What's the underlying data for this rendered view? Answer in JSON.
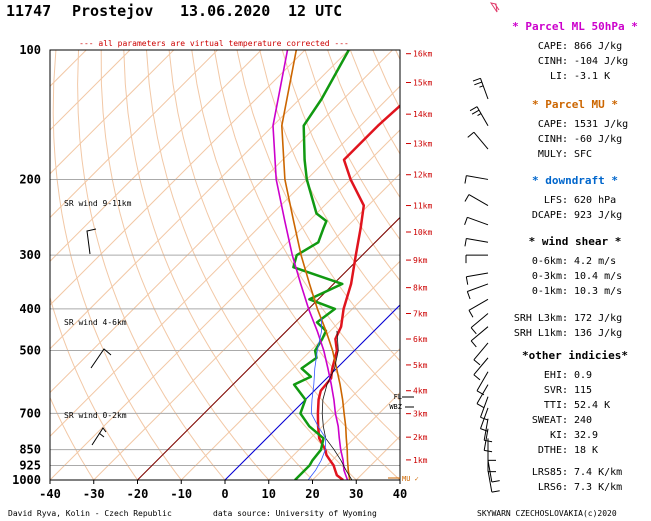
{
  "header": {
    "station_id": "11747",
    "station_name": "Prostejov",
    "date": "13.06.2020",
    "time": "12 UTC"
  },
  "note": "--- all parameters are virtual temperature corrected ---",
  "footer": {
    "left": "David Ryva, Kolin - Czech Republic",
    "center": "data source: University of Wyoming",
    "right": "SKYWARN CZECHOSLOVAKIA(c)2020"
  },
  "sr_labels": [
    "SR wind 9-11km",
    "SR wind 4-6km",
    "SR wind 0-2km"
  ],
  "level_labels": {
    "fl": "FL",
    "wbz": "WBZ",
    "mu": "MU"
  },
  "panels": {
    "parcel_ml": {
      "title": "* Parcel ML 50hPa *",
      "color": "#cc00cc",
      "rows": [
        {
          "label": "CAPE:",
          "value": "866 J/kg"
        },
        {
          "label": "CINH:",
          "value": "-104 J/kg"
        },
        {
          "label": "LI:",
          "value": "-3.1 K"
        }
      ]
    },
    "parcel_mu": {
      "title": "* Parcel MU *",
      "color": "#cc6600",
      "rows": [
        {
          "label": "CAPE:",
          "value": "1531 J/kg"
        },
        {
          "label": "CINH:",
          "value": "-60 J/kg"
        },
        {
          "label": "MULY:",
          "value": "SFC"
        }
      ]
    },
    "downdraft": {
      "title": "* downdraft *",
      "color": "#0066cc",
      "rows": [
        {
          "label": "LFS:",
          "value": "620 hPa"
        },
        {
          "label": "DCAPE:",
          "value": "923 J/kg"
        }
      ]
    },
    "wind_shear": {
      "title": "* wind shear *",
      "color": "#000000",
      "rows": [
        {
          "label": "0-6km:",
          "value": "4.2 m/s"
        },
        {
          "label": "0-3km:",
          "value": "10.4 m/s"
        },
        {
          "label": "0-1km:",
          "value": "10.3 m/s"
        }
      ]
    },
    "srh": {
      "rows": [
        {
          "label": "SRH L3km:",
          "value": "172 J/kg"
        },
        {
          "label": "SRH L1km:",
          "value": "136 J/kg"
        }
      ]
    },
    "other": {
      "title": "*other indicies*",
      "color": "#000000",
      "rows": [
        {
          "label": "EHI:",
          "value": "0.9"
        },
        {
          "label": "SVR:",
          "value": "115"
        },
        {
          "label": "TTI:",
          "value": "52.4 K"
        },
        {
          "label": "SWEAT:",
          "value": "240"
        },
        {
          "label": "KI:",
          "value": "32.9"
        },
        {
          "label": "DTHE:",
          "value": "18 K"
        },
        {
          "label": "LRS85:",
          "value": "7.4 K/km"
        },
        {
          "label": "LRS6:",
          "value": "7.3 K/km"
        }
      ]
    }
  },
  "chart_data": {
    "type": "line",
    "x_ticks": [
      -40,
      -30,
      -20,
      -10,
      0,
      10,
      20,
      30,
      40
    ],
    "xlim": [
      -40,
      40
    ],
    "pressure_ticks": [
      100,
      200,
      300,
      400,
      500,
      700,
      850,
      925,
      1000
    ],
    "pressure_range": [
      100,
      1000
    ],
    "height_labels": [
      "16km",
      "15km",
      "14km",
      "13km",
      "12km",
      "11km",
      "10km",
      "9km",
      "8km",
      "7km",
      "6km",
      "5km",
      "4km",
      "3km",
      "2km",
      "1km"
    ],
    "height_values_km": [
      16,
      15,
      14,
      13,
      12,
      11,
      10,
      9,
      8,
      7,
      6,
      5,
      4,
      3,
      2,
      1
    ],
    "height_pressures": [
      102,
      119,
      141,
      165,
      195,
      230,
      265,
      308,
      357,
      410,
      470,
      540,
      620,
      701,
      795,
      898
    ],
    "series": [
      {
        "key": "temperature",
        "color": "#e0141e",
        "points": [
          [
            1000,
            27
          ],
          [
            975,
            24.5
          ],
          [
            950,
            23
          ],
          [
            925,
            21.5
          ],
          [
            900,
            19.5
          ],
          [
            875,
            17.5
          ],
          [
            850,
            16
          ],
          [
            800,
            12
          ],
          [
            750,
            9
          ],
          [
            700,
            6
          ],
          [
            650,
            3
          ],
          [
            620,
            1.5
          ],
          [
            580,
            1
          ],
          [
            550,
            -1
          ],
          [
            500,
            -4
          ],
          [
            470,
            -7
          ],
          [
            440,
            -8.5
          ],
          [
            400,
            -12
          ],
          [
            350,
            -16
          ],
          [
            300,
            -21.5
          ],
          [
            260,
            -26.5
          ],
          [
            230,
            -31
          ],
          [
            200,
            -40
          ],
          [
            180,
            -46
          ],
          [
            150,
            -46
          ],
          [
            120,
            -45
          ],
          [
            100,
            -44
          ]
        ]
      },
      {
        "key": "dewpoint",
        "color": "#119911",
        "points": [
          [
            1000,
            16
          ],
          [
            950,
            16
          ],
          [
            925,
            16
          ],
          [
            900,
            15.5
          ],
          [
            850,
            15
          ],
          [
            800,
            13
          ],
          [
            750,
            7
          ],
          [
            700,
            2
          ],
          [
            650,
            0
          ],
          [
            600,
            -6
          ],
          [
            575,
            -4
          ],
          [
            550,
            -8
          ],
          [
            520,
            -7
          ],
          [
            500,
            -9
          ],
          [
            470,
            -10
          ],
          [
            450,
            -11
          ],
          [
            430,
            -15
          ],
          [
            400,
            -14
          ],
          [
            380,
            -22
          ],
          [
            350,
            -18
          ],
          [
            320,
            -33
          ],
          [
            300,
            -35
          ],
          [
            280,
            -33
          ],
          [
            260,
            -35
          ],
          [
            250,
            -36
          ],
          [
            240,
            -40
          ],
          [
            200,
            -50
          ],
          [
            180,
            -55
          ],
          [
            150,
            -63
          ],
          [
            130,
            -65
          ],
          [
            100,
            -70
          ]
        ]
      },
      {
        "key": "parcel_mu",
        "color": "#cc6600",
        "points": [
          [
            1000,
            28.5
          ],
          [
            950,
            26
          ],
          [
            900,
            23.5
          ],
          [
            850,
            21
          ],
          [
            800,
            18.2
          ],
          [
            750,
            15.3
          ],
          [
            700,
            12
          ],
          [
            650,
            8.5
          ],
          [
            600,
            4.5
          ],
          [
            550,
            0
          ],
          [
            500,
            -5
          ],
          [
            450,
            -11
          ],
          [
            400,
            -18
          ],
          [
            350,
            -25.5
          ],
          [
            300,
            -34
          ],
          [
            250,
            -43.5
          ],
          [
            200,
            -55
          ],
          [
            150,
            -68
          ],
          [
            100,
            -82
          ]
        ]
      },
      {
        "key": "parcel_ml",
        "color": "#cc00cc",
        "points": [
          [
            1000,
            28
          ],
          [
            950,
            25
          ],
          [
            900,
            22.5
          ],
          [
            850,
            19.5
          ],
          [
            800,
            16.6
          ],
          [
            750,
            13.6
          ],
          [
            700,
            10
          ],
          [
            650,
            6.5
          ],
          [
            600,
            2.5
          ],
          [
            550,
            -2
          ],
          [
            500,
            -7
          ],
          [
            450,
            -13
          ],
          [
            400,
            -20
          ],
          [
            350,
            -27.5
          ],
          [
            300,
            -36
          ],
          [
            250,
            -45.5
          ],
          [
            200,
            -57
          ],
          [
            150,
            -70
          ],
          [
            100,
            -84
          ]
        ]
      },
      {
        "key": "virtual_temperature",
        "color": "#111111",
        "points": [
          [
            1000,
            29
          ],
          [
            950,
            25.5
          ],
          [
            900,
            22
          ],
          [
            850,
            18
          ],
          [
            800,
            13.5
          ],
          [
            750,
            10.2
          ],
          [
            700,
            7
          ],
          [
            650,
            4
          ],
          [
            600,
            1.5
          ],
          [
            550,
            -0.5
          ],
          [
            500,
            -3.7
          ],
          [
            450,
            -8.5
          ]
        ]
      },
      {
        "key": "wetbulb",
        "color": "#3355ff",
        "points": [
          [
            1000,
            19
          ],
          [
            950,
            18.5
          ],
          [
            900,
            17.5
          ],
          [
            850,
            16
          ],
          [
            800,
            13.5
          ],
          [
            750,
            9
          ],
          [
            700,
            4.5
          ],
          [
            650,
            1.5
          ],
          [
            600,
            -1.5
          ],
          [
            550,
            -5
          ],
          [
            500,
            -8.5
          ],
          [
            450,
            -12
          ],
          [
            420,
            -15
          ]
        ]
      }
    ],
    "isotherm_zero": {
      "color": "#0000dd"
    },
    "dry_adiabat_ref": {
      "color": "#7a0000"
    },
    "sr_hodo_winds": [
      {
        "direction": 280,
        "speed_kt": 20
      },
      {
        "direction": 220,
        "speed_kt": 10
      },
      {
        "direction": 220,
        "speed_kt": 15
      }
    ],
    "wind_barbs": [
      {
        "p": 130,
        "dir": 340,
        "spd": 15
      },
      {
        "p": 150,
        "dir": 330,
        "spd": 15
      },
      {
        "p": 170,
        "dir": 320,
        "spd": 10
      },
      {
        "p": 200,
        "dir": 280,
        "spd": 10
      },
      {
        "p": 230,
        "dir": 300,
        "spd": 10
      },
      {
        "p": 255,
        "dir": 290,
        "spd": 10
      },
      {
        "p": 280,
        "dir": 280,
        "spd": 10
      },
      {
        "p": 300,
        "dir": 270,
        "spd": 10
      },
      {
        "p": 330,
        "dir": 260,
        "spd": 10
      },
      {
        "p": 350,
        "dir": 250,
        "spd": 10
      },
      {
        "p": 380,
        "dir": 240,
        "spd": 10
      },
      {
        "p": 410,
        "dir": 230,
        "spd": 10
      },
      {
        "p": 440,
        "dir": 230,
        "spd": 10
      },
      {
        "p": 480,
        "dir": 220,
        "spd": 10
      },
      {
        "p": 520,
        "dir": 220,
        "spd": 10
      },
      {
        "p": 560,
        "dir": 210,
        "spd": 10
      },
      {
        "p": 600,
        "dir": 210,
        "spd": 10
      },
      {
        "p": 640,
        "dir": 200,
        "spd": 10
      },
      {
        "p": 680,
        "dir": 200,
        "spd": 10
      },
      {
        "p": 720,
        "dir": 190,
        "spd": 10
      },
      {
        "p": 760,
        "dir": 190,
        "spd": 10
      },
      {
        "p": 800,
        "dir": 180,
        "spd": 10
      },
      {
        "p": 850,
        "dir": 180,
        "spd": 10
      },
      {
        "p": 900,
        "dir": 170,
        "spd": 10
      },
      {
        "p": 950,
        "dir": 170,
        "spd": 10
      }
    ]
  }
}
